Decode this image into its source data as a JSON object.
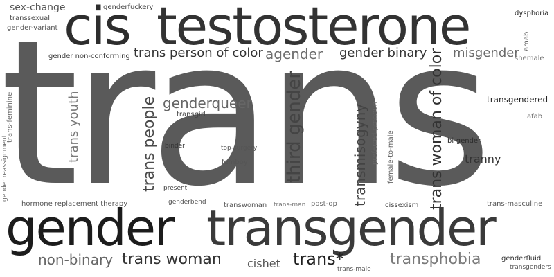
{
  "words": [
    {
      "text": "trans",
      "color": "#5a5a5a"
    },
    {
      "text": "cis",
      "color": "#2d2d2d"
    },
    {
      "text": "testosterone",
      "color": "#333333"
    },
    {
      "text": "gender",
      "color": "#1c1c1c"
    },
    {
      "text": "transgender",
      "color": "#3a3a3a"
    },
    {
      "text": "sex-change",
      "color": "#555555"
    },
    {
      "text": "transsexual",
      "color": "#4a4a4a"
    },
    {
      "text": "gender-variant",
      "color": "#555555"
    },
    {
      "text": "genderfuckery",
      "color": "#444444"
    },
    {
      "text": "dysphoria",
      "color": "#222222"
    },
    {
      "text": "trans person of color",
      "color": "#333333"
    },
    {
      "text": "agender",
      "color": "#6e6e6e"
    },
    {
      "text": "gender binary",
      "color": "#333333"
    },
    {
      "text": "misgender",
      "color": "#6a6a6a"
    },
    {
      "text": "amab",
      "color": "#555555"
    },
    {
      "text": "shemale",
      "color": "#777777"
    },
    {
      "text": "gender non-conforming",
      "color": "#3a3a3a"
    },
    {
      "text": "trans-feminine",
      "color": "#6a6a6a"
    },
    {
      "text": "gender reassignment",
      "color": "#666666"
    },
    {
      "text": "trans youth",
      "color": "#7a7a7a"
    },
    {
      "text": "trans people",
      "color": "#4a4a4a"
    },
    {
      "text": "genderqueer",
      "color": "#666666"
    },
    {
      "text": "transgirl",
      "color": "#444444"
    },
    {
      "text": "third gender",
      "color": "#444444"
    },
    {
      "text": "transmisogyny",
      "color": "#444444"
    },
    {
      "text": "preferred pronoun",
      "color": "#666666"
    },
    {
      "text": "female-to-male",
      "color": "#666666"
    },
    {
      "text": "trans woman of color",
      "color": "#333333"
    },
    {
      "text": "transgendered",
      "color": "#222222"
    },
    {
      "text": "afab",
      "color": "#666666"
    },
    {
      "text": "bi-gender",
      "color": "#2d2d2d"
    },
    {
      "text": "tranny",
      "color": "#333333"
    },
    {
      "text": "binder",
      "color": "#333333"
    },
    {
      "text": "top-surgery",
      "color": "#555555"
    },
    {
      "text": "femboy",
      "color": "#555555"
    },
    {
      "text": "present",
      "color": "#444444"
    },
    {
      "text": "genderbend",
      "color": "#555555"
    },
    {
      "text": "hormone replacement therapy",
      "color": "#555555"
    },
    {
      "text": "transwoman",
      "color": "#555555"
    },
    {
      "text": "trans-man",
      "color": "#777777"
    },
    {
      "text": "post-op",
      "color": "#666666"
    },
    {
      "text": "cissexism",
      "color": "#444444"
    },
    {
      "text": "trans-masculine",
      "color": "#555555"
    },
    {
      "text": "non-binary",
      "color": "#666666"
    },
    {
      "text": "trans woman",
      "color": "#333333"
    },
    {
      "text": "cishet",
      "color": "#555555"
    },
    {
      "text": "trans*",
      "color": "#1f1f1f"
    },
    {
      "text": "trans-male",
      "color": "#555555"
    },
    {
      "text": "transphobia",
      "color": "#7a7a7a"
    },
    {
      "text": "genderfluid",
      "color": "#333333"
    },
    {
      "text": "transgenders",
      "color": "#555555"
    }
  ]
}
